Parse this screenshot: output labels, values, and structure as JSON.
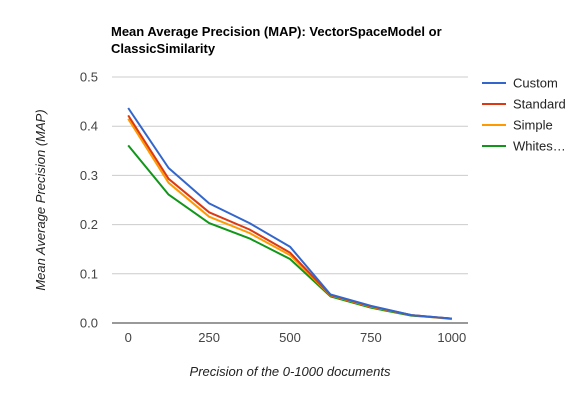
{
  "chart_data": {
    "type": "line",
    "title_lines": [
      "Mean Average Precision (MAP): VectorSpaceModel or",
      "ClassicSimilarity"
    ],
    "xlabel": "Precision of the 0-1000 documents",
    "ylabel": "Mean Average Precision (MAP)",
    "x": [
      0,
      125,
      250,
      375,
      500,
      625,
      750,
      875,
      1000
    ],
    "x_ticks": [
      0,
      250,
      500,
      750,
      1000
    ],
    "x_tick_labels": [
      "0",
      "250",
      "500",
      "750",
      "1000"
    ],
    "xlim": [
      -50,
      1050
    ],
    "y_ticks": [
      0,
      0.1,
      0.2,
      0.3,
      0.4,
      0.5
    ],
    "y_tick_labels": [
      "0.0",
      "0.1",
      "0.2",
      "0.3",
      "0.4",
      "0.5"
    ],
    "ylim": [
      0,
      0.5
    ],
    "grid": true,
    "legend_position": "right",
    "series": [
      {
        "name": "Custom",
        "color": "#3366cc",
        "values": [
          0.437,
          0.315,
          0.243,
          0.203,
          0.155,
          0.058,
          0.035,
          0.016,
          0.009
        ]
      },
      {
        "name": "Standard",
        "color": "#dc3912",
        "values": [
          0.422,
          0.293,
          0.225,
          0.19,
          0.143,
          0.057,
          0.034,
          0.016,
          0.009
        ]
      },
      {
        "name": "Simple",
        "color": "#ff9900",
        "values": [
          0.415,
          0.285,
          0.216,
          0.183,
          0.138,
          0.056,
          0.033,
          0.016,
          0.008
        ]
      },
      {
        "name": "Whites…",
        "color": "#109618",
        "values": [
          0.361,
          0.261,
          0.203,
          0.172,
          0.13,
          0.054,
          0.031,
          0.015,
          0.009
        ]
      }
    ]
  }
}
